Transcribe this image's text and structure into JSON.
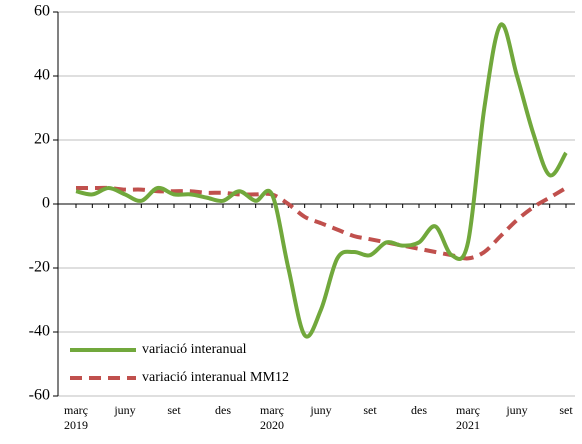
{
  "chart_data": {
    "type": "line",
    "categories": [
      "març",
      null,
      null,
      "juny",
      null,
      null,
      "set",
      null,
      null,
      "des",
      null,
      null,
      "març",
      null,
      null,
      "juny",
      null,
      null,
      "set",
      null,
      null,
      "des",
      null,
      null,
      "març",
      null,
      null,
      "juny",
      null,
      null,
      "set"
    ],
    "category_years": [
      "2019",
      null,
      null,
      null,
      null,
      null,
      null,
      null,
      null,
      null,
      null,
      null,
      "2020",
      null,
      null,
      null,
      null,
      null,
      null,
      null,
      null,
      null,
      null,
      null,
      "2021",
      null,
      null,
      null,
      null,
      null,
      null
    ],
    "series": [
      {
        "name": "variació interanual",
        "color": "#71a83c",
        "values": [
          4,
          3,
          5,
          3,
          1,
          5,
          3,
          3,
          2,
          1,
          4,
          1,
          3,
          -20,
          -41,
          -33,
          -17,
          -15,
          -16,
          -12,
          -13,
          -12,
          -7,
          -16,
          -12,
          30,
          56,
          40,
          22,
          9,
          16
        ]
      },
      {
        "name": "variació interanual MM12",
        "color": "#c0504d",
        "values": [
          5,
          5,
          5,
          4.5,
          4.5,
          4,
          4,
          4,
          3.5,
          3.5,
          3,
          3,
          3,
          0,
          -4,
          -6,
          -8,
          -10,
          -11,
          -12,
          -13,
          -14,
          -15,
          -16,
          -17,
          -15,
          -10,
          -5,
          -1,
          2,
          5
        ]
      }
    ],
    "ylim": [
      -60,
      60
    ],
    "yticks": [
      -60,
      -40,
      -20,
      0,
      20,
      40,
      60
    ],
    "grid": true,
    "legend": "lower left"
  }
}
